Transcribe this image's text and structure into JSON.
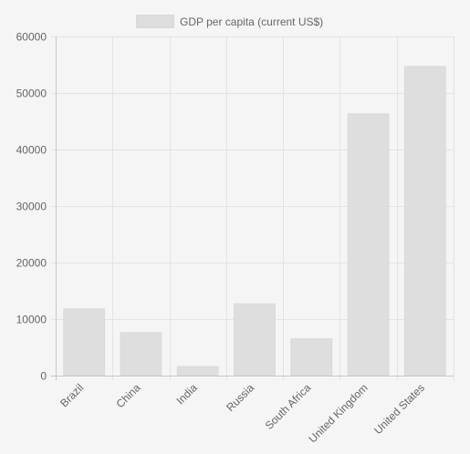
{
  "chart_data": {
    "type": "bar",
    "categories": [
      "Brazil",
      "China",
      "India",
      "Russia",
      "South Africa",
      "United Kingdom",
      "United States"
    ],
    "series": [
      {
        "name": "GDP per capita (current US$)",
        "values": [
          11800,
          7600,
          1600,
          12700,
          6500,
          46300,
          54700
        ]
      }
    ],
    "ylim": [
      0,
      60000
    ],
    "yticks": [
      0,
      10000,
      20000,
      30000,
      40000,
      50000,
      60000
    ],
    "grid": true,
    "legend_position": "top",
    "colors": {
      "bar_fill": "#dedede",
      "bar_border": "#dadada",
      "grid": "#e3e3e3",
      "axis": "#c8c8c8",
      "text": "#666666",
      "background": "#f5f5f5"
    }
  }
}
